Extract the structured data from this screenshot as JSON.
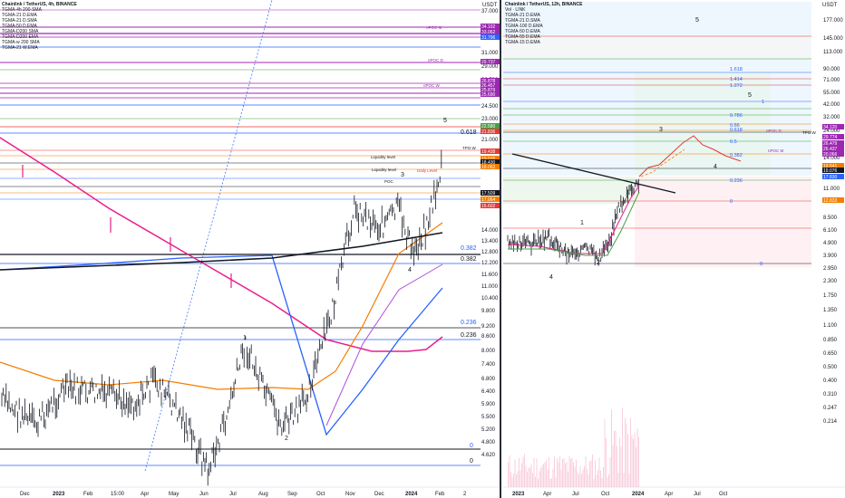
{
  "left": {
    "title": "Chainlink / TetherUS, 4h, BINANCE",
    "legend": [
      "TGMA-4h 200-SMA",
      "TGMA-21 D.EMA",
      "TGMA-21 D.SMA",
      "TGMA-50 D.EMA",
      "TGMA-D200 SMA",
      "TGMA-D200 EMA",
      "TGMA-w 200 SMA",
      "TGMA-21 W.EMA"
    ],
    "unit": "USDT",
    "y_ticks": [
      "37.000",
      "33.000",
      "31.000",
      "29.000",
      "26.500",
      "24.500",
      "23.000",
      "21.000",
      "14.000",
      "13.400",
      "12.800",
      "12.200",
      "11.600",
      "11.000",
      "10.400",
      "9.800",
      "9.200",
      "8.600",
      "8.000",
      "7.400",
      "6.800",
      "6.400",
      "5.900",
      "5.500",
      "5.200",
      "4.800",
      "4.620"
    ],
    "x_ticks": [
      "Dec",
      "2023",
      "Feb",
      "15:00",
      "Apr",
      "May",
      "Jun",
      "Jul",
      "Aug",
      "Sep",
      "Oct",
      "Nov",
      "Dec",
      "2024",
      "Feb",
      "2"
    ],
    "fib_labels": [
      "0.618",
      "0.382",
      "0.382",
      "0.236",
      "0.236",
      "0",
      "0"
    ],
    "wave_labels": [
      "1",
      "2",
      "3",
      "4",
      "5"
    ],
    "price_tags": [
      {
        "text": "34.102",
        "color": "#9c27b0"
      },
      {
        "text": "33.062",
        "color": "#9c27b0"
      },
      {
        "text": "31.796",
        "color": "#2962ff"
      },
      {
        "text": "29.737",
        "color": "#9c27b0"
      },
      {
        "text": "26.878",
        "color": "#9c27b0"
      },
      {
        "text": "26.457",
        "color": "#9c27b0"
      },
      {
        "text": "25.879",
        "color": "#9c27b0"
      },
      {
        "text": "25.690",
        "color": "#9c27b0"
      },
      {
        "text": "22.580",
        "color": "#43a047"
      },
      {
        "text": "21.836",
        "color": "#e53935"
      },
      {
        "text": "19.438",
        "color": "#e53935"
      },
      {
        "text": "19.076",
        "color": "#f57c00"
      },
      {
        "text": "18.430",
        "color": "#131722"
      },
      {
        "text": "18.062",
        "color": "#f57c00"
      },
      {
        "text": "17.509",
        "color": "#131722"
      },
      {
        "text": "17.064",
        "color": "#f57c00"
      },
      {
        "text": "16.602",
        "color": "#e53935"
      }
    ],
    "line_labels": [
      {
        "text": "nPOC M",
        "color": "#9c27b0"
      },
      {
        "text": "nPOC D",
        "color": "#9c27b0"
      },
      {
        "text": "TPO.W",
        "color": "#131722"
      },
      {
        "text": "nPOC W",
        "color": "#9c27b0"
      },
      {
        "text": "Liquidity level",
        "color": "#131722"
      },
      {
        "text": "Liquidity level",
        "color": "#131722"
      },
      {
        "text": "Daily Level",
        "color": "#e53935"
      },
      {
        "text": "POC",
        "color": "#131722"
      }
    ]
  },
  "right": {
    "title": "Chainlink / TetherUS, 12h, BINANCE",
    "legend": [
      "Vol · LINK",
      "TGMA-21 D.EMA",
      "TGMA-21 D.SMA",
      "TGMA-100 D.EMA",
      "TGMA-50 D.EMA",
      "TGMA-55 D.EMA",
      "TGMA-15 D.EMA"
    ],
    "unit": "USDT",
    "y_ticks": [
      "177.000",
      "145.000",
      "113.000",
      "90.000",
      "71.000",
      "55.000",
      "42.000",
      "32.000",
      "24.000",
      "19.000",
      "14.000",
      "11.000",
      "8.500",
      "6.100",
      "4.900",
      "3.900",
      "2.950",
      "2.300",
      "1.750",
      "1.350",
      "1.100",
      "0.850",
      "0.650",
      "0.500",
      "0.400",
      "0.310",
      "0.247",
      "0.214"
    ],
    "x_ticks": [
      "2023",
      "Apr",
      "Jul",
      "Oct",
      "2024",
      "Apr",
      "Jul",
      "Oct"
    ],
    "fib_labels": [
      "1.618",
      "1.414",
      "1.272",
      "1",
      "0.786",
      "0.66",
      "0.618",
      "0.5",
      "0.382",
      "0.236",
      "0",
      "0"
    ],
    "wave_labels": [
      "1",
      "2",
      "3",
      "4",
      "5"
    ],
    "price_tags": [
      {
        "text": "34.120",
        "color": "#9c27b0"
      },
      {
        "text": "29.774",
        "color": "#9c27b0"
      },
      {
        "text": "26.479",
        "color": "#9c27b0"
      },
      {
        "text": "26.437",
        "color": "#9c27b0"
      },
      {
        "text": "20.066",
        "color": "#9c27b0"
      },
      {
        "text": "19.541",
        "color": "#f57c00"
      },
      {
        "text": "19.076",
        "color": "#131722"
      },
      {
        "text": "17.830",
        "color": "#2962ff"
      },
      {
        "text": "12.833",
        "color": "#f57c00"
      }
    ],
    "line_labels": [
      {
        "text": "TPO.W",
        "color": "#131722"
      },
      {
        "text": "nPOC M",
        "color": "#9c27b0"
      },
      {
        "text": "nPOC D",
        "color": "#9c27b0"
      }
    ]
  },
  "chart_data": [
    {
      "type": "line",
      "title": "Chainlink / TetherUS, 4h, BINANCE",
      "ylabel": "USDT",
      "xlabel": "",
      "x": [
        "Dec",
        "2023",
        "Feb",
        "Apr",
        "May",
        "Jun",
        "Jul",
        "Aug",
        "Sep",
        "Oct",
        "Nov",
        "Dec",
        "2024",
        "Feb"
      ],
      "series": [
        {
          "name": "LINK/USDT",
          "values": [
            6.2,
            5.6,
            6.8,
            6.9,
            6.5,
            5.2,
            7.7,
            6.2,
            6.0,
            7.4,
            14.0,
            15.0,
            14.5,
            18.4
          ]
        }
      ],
      "ylim": [
        4.62,
        37.0
      ],
      "scale": "log"
    },
    {
      "type": "line",
      "title": "Chainlink / TetherUS, 12h, BINANCE",
      "ylabel": "USDT",
      "xlabel": "",
      "x": [
        "2023",
        "Apr",
        "Jul",
        "Oct",
        "2024"
      ],
      "series": [
        {
          "name": "LINK/USDT",
          "values": [
            5.8,
            7.0,
            6.0,
            7.8,
            15.0
          ]
        }
      ],
      "ylim": [
        0.214,
        177.0
      ],
      "scale": "log"
    }
  ]
}
